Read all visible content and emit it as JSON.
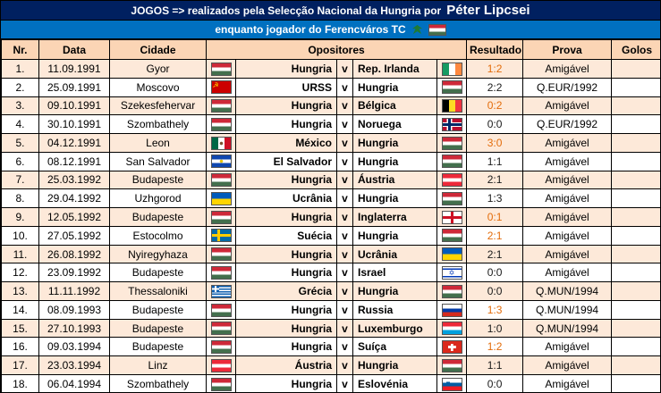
{
  "title_bar": {
    "prefix": "JOGOS => realizados pela Selecção Nacional da Hungria por",
    "player": "Péter Lipcsei"
  },
  "subtitle_bar": {
    "text": "enquanto jogador do Ferencváros TC",
    "icons": [
      "ferencvaros-eagle-icon",
      "hungary-flag-icon"
    ]
  },
  "columns": {
    "nr": "Nr.",
    "data": "Data",
    "cidade": "Cidade",
    "opositores": "Opositores",
    "resultado": "Resultado",
    "prova": "Prova",
    "golos": "Golos"
  },
  "separator": "v",
  "colors": {
    "title_bg": "#002060",
    "subtitle_bg": "#0070C0",
    "header_bg": "#FBD5B5",
    "row_alt_bg": "#FDE9D9",
    "result_loss": "#E36C0A",
    "result_normal": "#1A1A1A"
  },
  "flag_icon_names": {
    "hu": "hungary-flag-icon",
    "ie": "ireland-flag-icon",
    "su": "ussr-flag-icon",
    "be": "belgium-flag-icon",
    "no": "norway-flag-icon",
    "mx": "mexico-flag-icon",
    "sv": "el-salvador-flag-icon",
    "at": "austria-flag-icon",
    "ua": "ukraine-flag-icon",
    "en": "england-flag-icon",
    "se": "sweden-flag-icon",
    "il": "israel-flag-icon",
    "gr": "greece-flag-icon",
    "ru": "russia-flag-icon",
    "lu": "luxembourg-flag-icon",
    "ch": "switzerland-flag-icon",
    "si": "slovenia-flag-icon"
  },
  "rows": [
    {
      "nr": "1.",
      "date": "11.09.1991",
      "city": "Gyor",
      "home_flag": "hu",
      "home": "Hungria",
      "away": "Rep. Irlanda",
      "away_flag": "ie",
      "result": "1:2",
      "loss": true,
      "prova": "Amigável",
      "golos": ""
    },
    {
      "nr": "2.",
      "date": "25.09.1991",
      "city": "Moscovo",
      "home_flag": "su",
      "home": "URSS",
      "away": "Hungria",
      "away_flag": "hu",
      "result": "2:2",
      "loss": false,
      "prova": "Q.EUR/1992",
      "golos": ""
    },
    {
      "nr": "3.",
      "date": "09.10.1991",
      "city": "Szekesfehervar",
      "home_flag": "hu",
      "home": "Hungria",
      "away": "Bélgica",
      "away_flag": "be",
      "result": "0:2",
      "loss": true,
      "prova": "Amigável",
      "golos": ""
    },
    {
      "nr": "4.",
      "date": "30.10.1991",
      "city": "Szombathely",
      "home_flag": "hu",
      "home": "Hungria",
      "away": "Noruega",
      "away_flag": "no",
      "result": "0:0",
      "loss": false,
      "prova": "Q.EUR/1992",
      "golos": ""
    },
    {
      "nr": "5.",
      "date": "04.12.1991",
      "city": "Leon",
      "home_flag": "mx",
      "home": "México",
      "away": "Hungria",
      "away_flag": "hu",
      "result": "3:0",
      "loss": true,
      "prova": "Amigável",
      "golos": ""
    },
    {
      "nr": "6.",
      "date": "08.12.1991",
      "city": "San Salvador",
      "home_flag": "sv",
      "home": "El Salvador",
      "away": "Hungria",
      "away_flag": "hu",
      "result": "1:1",
      "loss": false,
      "prova": "Amigável",
      "golos": ""
    },
    {
      "nr": "7.",
      "date": "25.03.1992",
      "city": "Budapeste",
      "home_flag": "hu",
      "home": "Hungria",
      "away": "Áustria",
      "away_flag": "at",
      "result": "2:1",
      "loss": false,
      "prova": "Amigável",
      "golos": ""
    },
    {
      "nr": "8.",
      "date": "29.04.1992",
      "city": "Uzhgorod",
      "home_flag": "ua",
      "home": "Ucrânia",
      "away": "Hungria",
      "away_flag": "hu",
      "result": "1:3",
      "loss": false,
      "prova": "Amigável",
      "golos": ""
    },
    {
      "nr": "9.",
      "date": "12.05.1992",
      "city": "Budapeste",
      "home_flag": "hu",
      "home": "Hungria",
      "away": "Inglaterra",
      "away_flag": "en",
      "result": "0:1",
      "loss": true,
      "prova": "Amigável",
      "golos": ""
    },
    {
      "nr": "10.",
      "date": "27.05.1992",
      "city": "Estocolmo",
      "home_flag": "se",
      "home": "Suécia",
      "away": "Hungria",
      "away_flag": "hu",
      "result": "2:1",
      "loss": true,
      "prova": "Amigável",
      "golos": ""
    },
    {
      "nr": "11.",
      "date": "26.08.1992",
      "city": "Nyiregyhaza",
      "home_flag": "hu",
      "home": "Hungria",
      "away": "Ucrânia",
      "away_flag": "ua",
      "result": "2:1",
      "loss": false,
      "prova": "Amigável",
      "golos": ""
    },
    {
      "nr": "12.",
      "date": "23.09.1992",
      "city": "Budapeste",
      "home_flag": "hu",
      "home": "Hungria",
      "away": "Israel",
      "away_flag": "il",
      "result": "0:0",
      "loss": false,
      "prova": "Amigável",
      "golos": ""
    },
    {
      "nr": "13.",
      "date": "11.11.1992",
      "city": "Thessaloniki",
      "home_flag": "gr",
      "home": "Grécia",
      "away": "Hungria",
      "away_flag": "hu",
      "result": "0:0",
      "loss": false,
      "prova": "Q.MUN/1994",
      "golos": ""
    },
    {
      "nr": "14.",
      "date": "08.09.1993",
      "city": "Budapeste",
      "home_flag": "hu",
      "home": "Hungria",
      "away": "Russia",
      "away_flag": "ru",
      "result": "1:3",
      "loss": true,
      "prova": "Q.MUN/1994",
      "golos": ""
    },
    {
      "nr": "15.",
      "date": "27.10.1993",
      "city": "Budapeste",
      "home_flag": "hu",
      "home": "Hungria",
      "away": "Luxemburgo",
      "away_flag": "lu",
      "result": "1:0",
      "loss": false,
      "prova": "Q.MUN/1994",
      "golos": ""
    },
    {
      "nr": "16.",
      "date": "09.03.1994",
      "city": "Budapeste",
      "home_flag": "hu",
      "home": "Hungria",
      "away": "Suíça",
      "away_flag": "ch",
      "result": "1:2",
      "loss": true,
      "prova": "Amigável",
      "golos": ""
    },
    {
      "nr": "17.",
      "date": "23.03.1994",
      "city": "Linz",
      "home_flag": "at",
      "home": "Áustria",
      "away": "Hungria",
      "away_flag": "hu",
      "result": "1:1",
      "loss": false,
      "prova": "Amigável",
      "golos": ""
    },
    {
      "nr": "18.",
      "date": "06.04.1994",
      "city": "Szombathely",
      "home_flag": "hu",
      "home": "Hungria",
      "away": "Eslovénia",
      "away_flag": "si",
      "result": "0:0",
      "loss": false,
      "prova": "Amigável",
      "golos": ""
    }
  ]
}
